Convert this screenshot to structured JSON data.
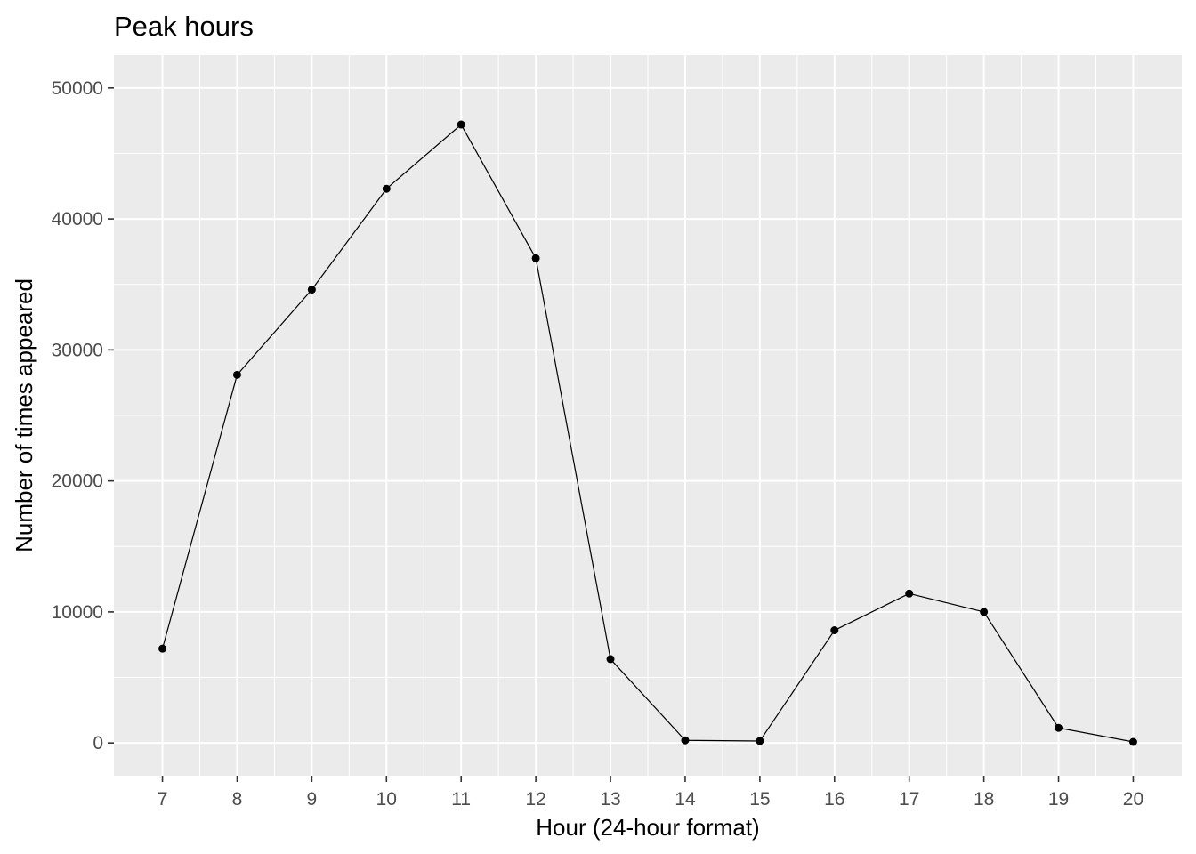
{
  "chart_data": {
    "type": "line",
    "title": "Peak hours",
    "xlabel": "Hour (24-hour format)",
    "ylabel": "Number of times appeared",
    "x": [
      7,
      8,
      9,
      10,
      11,
      12,
      13,
      14,
      15,
      16,
      17,
      18,
      19,
      20
    ],
    "series": [
      {
        "values": [
          7200,
          28100,
          34600,
          42300,
          47200,
          37000,
          6400,
          200,
          150,
          8600,
          11400,
          10000,
          1150,
          80
        ]
      }
    ],
    "xlim": [
      6.35,
      20.65
    ],
    "ylim": [
      -2500,
      52500
    ],
    "x_ticks": [
      "7",
      "8",
      "9",
      "10",
      "11",
      "12",
      "13",
      "14",
      "15",
      "16",
      "17",
      "18",
      "19",
      "20"
    ],
    "y_ticks": [
      "0",
      "10000",
      "20000",
      "30000",
      "40000",
      "50000"
    ],
    "grid": true,
    "legend": "none",
    "colors": {
      "panel_background": "#ebebeb",
      "grid": "#ffffff",
      "line": "#000000",
      "point": "#000000",
      "tick_text": "#4d4d4d",
      "tick_mark": "#333333"
    }
  }
}
